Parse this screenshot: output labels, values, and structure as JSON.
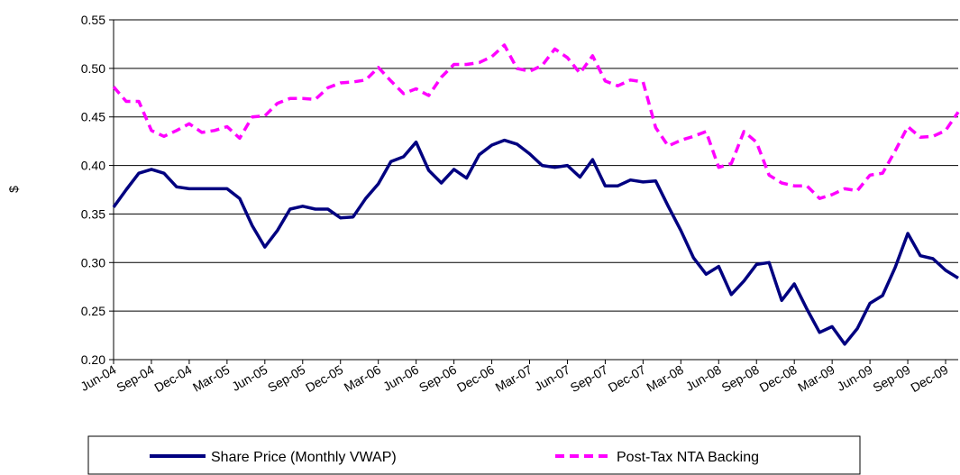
{
  "chart_data": {
    "type": "line",
    "y_label": "$",
    "categories": [
      "Jun-04",
      null,
      null,
      "Sep-04",
      null,
      null,
      "Dec-04",
      null,
      null,
      "Mar-05",
      null,
      null,
      "Jun-05",
      null,
      null,
      "Sep-05",
      null,
      null,
      "Dec-05",
      null,
      null,
      "Mar-06",
      null,
      null,
      "Jun-06",
      null,
      null,
      "Sep-06",
      null,
      null,
      "Dec-06",
      null,
      null,
      "Mar-07",
      null,
      null,
      "Jun-07",
      null,
      null,
      "Sep-07",
      null,
      null,
      "Dec-07",
      null,
      null,
      "Mar-08",
      null,
      null,
      "Jun-08",
      null,
      null,
      "Sep-08",
      null,
      null,
      "Dec-08",
      null,
      null,
      "Mar-09",
      null,
      null,
      "Jun-09",
      null,
      null,
      "Sep-09",
      null,
      null,
      "Dec-09",
      null
    ],
    "series": [
      {
        "name": "Share Price (Monthly VWAP)",
        "color": "#000080",
        "dash": false,
        "values": [
          0.357,
          0.375,
          0.392,
          0.396,
          0.392,
          0.378,
          0.376,
          0.376,
          0.376,
          0.376,
          0.366,
          0.338,
          0.316,
          0.333,
          0.355,
          0.358,
          0.355,
          0.355,
          0.346,
          0.347,
          0.366,
          0.381,
          0.404,
          0.409,
          0.424,
          0.395,
          0.382,
          0.396,
          0.387,
          0.411,
          0.421,
          0.426,
          0.422,
          0.412,
          0.4,
          0.398,
          0.4,
          0.388,
          0.406,
          0.379,
          0.379,
          0.385,
          0.383,
          0.384,
          0.358,
          0.333,
          0.305,
          0.288,
          0.296,
          0.267,
          0.281,
          0.298,
          0.3,
          0.261,
          0.278,
          0.252,
          0.228,
          0.234,
          0.216,
          0.232,
          0.258,
          0.266,
          0.295,
          0.33,
          0.307,
          0.304,
          0.292,
          0.284
        ]
      },
      {
        "name": "Post-Tax NTA Backing",
        "color": "#ff00ff",
        "dash": true,
        "values": [
          0.481,
          0.466,
          0.466,
          0.436,
          0.43,
          0.436,
          0.443,
          0.434,
          0.436,
          0.44,
          0.428,
          0.45,
          0.451,
          0.464,
          0.469,
          0.469,
          0.468,
          0.48,
          0.485,
          0.486,
          0.488,
          0.501,
          0.487,
          0.474,
          0.479,
          0.472,
          0.491,
          0.504,
          0.504,
          0.506,
          0.512,
          0.524,
          0.5,
          0.497,
          0.503,
          0.52,
          0.511,
          0.495,
          0.513,
          0.487,
          0.482,
          0.488,
          0.486,
          0.439,
          0.42,
          0.426,
          0.43,
          0.435,
          0.398,
          0.402,
          0.435,
          0.424,
          0.39,
          0.382,
          0.379,
          0.379,
          0.366,
          0.37,
          0.376,
          0.374,
          0.39,
          0.392,
          0.415,
          0.44,
          0.429,
          0.43,
          0.436,
          0.455
        ]
      }
    ],
    "ylim": [
      0.2,
      0.55
    ],
    "yticks": [
      {
        "value": 0.2,
        "label": "0.20"
      },
      {
        "value": 0.25,
        "label": "0.25"
      },
      {
        "value": 0.3,
        "label": "0.30"
      },
      {
        "value": 0.35,
        "label": "0.35"
      },
      {
        "value": 0.4,
        "label": "0.40"
      },
      {
        "value": 0.45,
        "label": "0.45"
      },
      {
        "value": 0.5,
        "label": "0.50"
      },
      {
        "value": 0.55,
        "label": "0.55"
      }
    ],
    "grid": true,
    "legend": "bottom"
  }
}
